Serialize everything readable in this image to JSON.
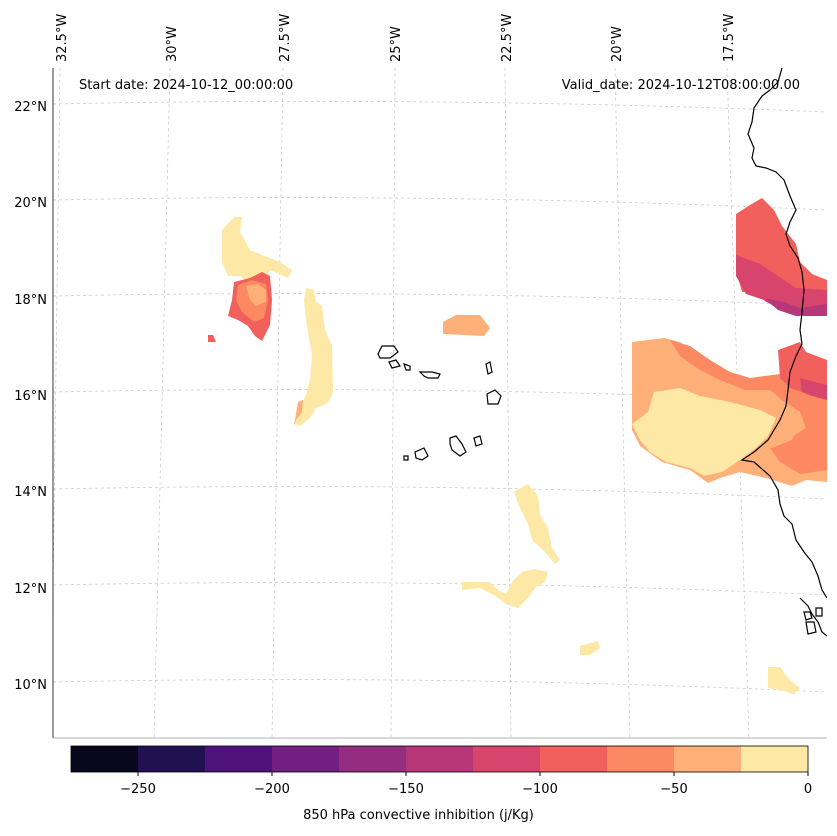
{
  "header": {
    "start_date": "Start date: 2024-10-12_00:00:00",
    "valid_date": "Valid_date: 2024-10-12T08:00:00.00"
  },
  "longitude_labels": [
    "32.5°W",
    "30°W",
    "27.5°W",
    "25°W",
    "22.5°W",
    "20°W",
    "17.5°W"
  ],
  "latitude_labels": [
    "22°N",
    "20°N",
    "18°N",
    "16°N",
    "14°N",
    "12°N",
    "10°N"
  ],
  "colorbar": {
    "label": "850 hPa convective inhibition (j/Kg)",
    "tick_labels": [
      "−250",
      "−200",
      "−150",
      "−100",
      "−50",
      "0"
    ],
    "levels": [
      -275,
      -250,
      -225,
      -200,
      -175,
      -150,
      -125,
      -100,
      -75,
      -50,
      -25,
      0
    ],
    "colors": [
      "#08071e",
      "#221150",
      "#4f127b",
      "#721f81",
      "#942c80",
      "#b73779",
      "#d8456c",
      "#f1605d",
      "#fc8961",
      "#feb078",
      "#fde8a5"
    ]
  },
  "map": {
    "coastline_color": "#000000",
    "gridline_color": "#cccccc"
  }
}
